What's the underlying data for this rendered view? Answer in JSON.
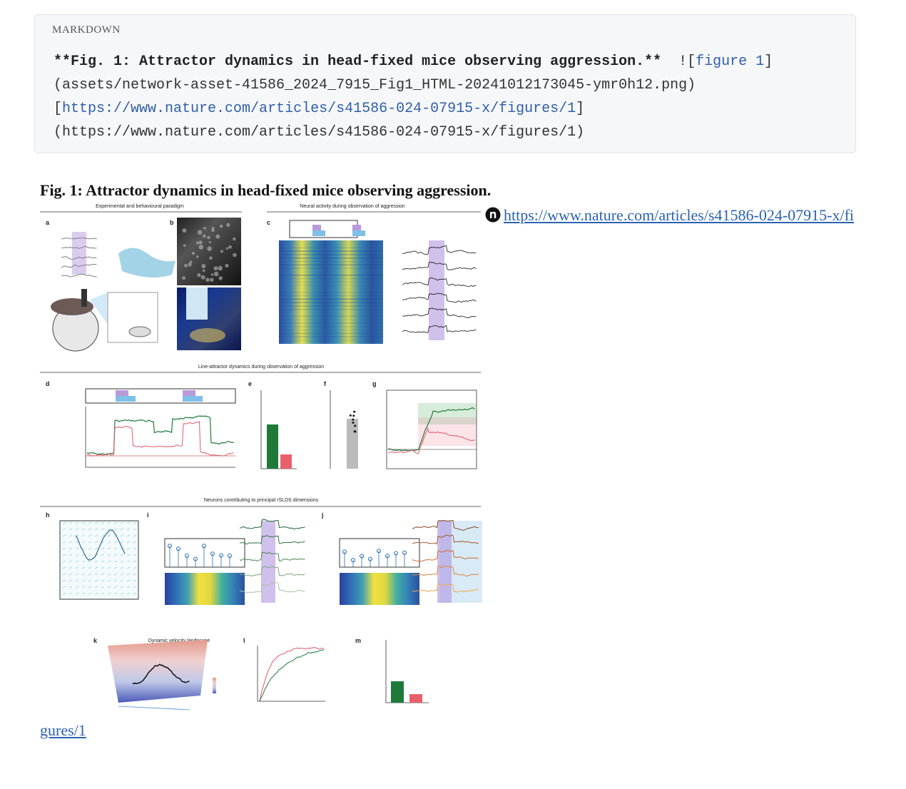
{
  "code": {
    "label": "MARKDOWN",
    "lines": [
      [
        {
          "text": "**Fig. 1: Attractor dynamics in head-fixed mice observing aggression.**",
          "style": "bold"
        },
        {
          "text": "  ![",
          "style": "plain"
        },
        {
          "text": "figure 1",
          "style": "link"
        },
        {
          "text": "]",
          "style": "plain"
        }
      ],
      [
        {
          "text": "(assets/network-asset-41586_2024_7915_Fig1_HTML-20241012173045-ymr0h12.png)",
          "style": "plain"
        }
      ],
      [
        {
          "text": "[",
          "style": "plain"
        },
        {
          "text": "https://www.nature.com/articles/s41586-024-07915-x/figures/1",
          "style": "link"
        },
        {
          "text": "]",
          "style": "plain"
        }
      ],
      [
        {
          "text": "(https://www.nature.com/articles/s41586-024-07915-x/figures/1)",
          "style": "plain"
        }
      ]
    ]
  },
  "heading": "Fig. 1: Attractor dynamics in head-fixed mice observing aggression.",
  "figure": {
    "sections": [
      "Experimental and behavioural paradigm",
      "Neural activity during observation of aggression",
      "Line-attractor dynamics during observation of aggression",
      "Neurons contributing to principal rSLDS dimensions",
      "Dynamic velocity landscape"
    ],
    "panels": [
      "a",
      "b",
      "c",
      "d",
      "e",
      "f",
      "g",
      "h",
      "i",
      "j",
      "k",
      "l",
      "m"
    ]
  },
  "link": "https://www.nature.com/articles/s41586-024-07915-x/figures/1"
}
